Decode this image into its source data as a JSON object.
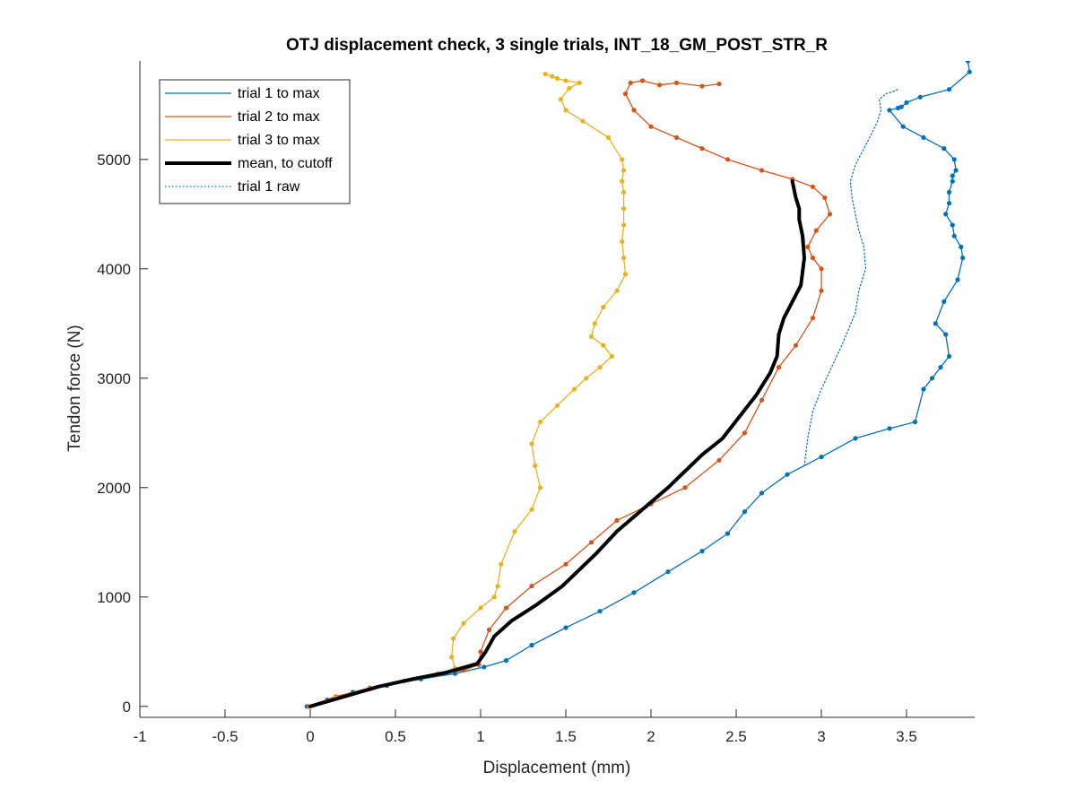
{
  "chart_data": {
    "type": "line",
    "title": "OTJ displacement check, 3 single trials, INT_18_GM_POST_STR_R",
    "xlabel": "Displacement (mm)",
    "ylabel": "Tendon force (N)",
    "xlim": [
      -1,
      3.9
    ],
    "ylim": [
      -100,
      5900
    ],
    "xticks": [
      -1,
      -0.5,
      0,
      0.5,
      1,
      1.5,
      2,
      2.5,
      3,
      3.5
    ],
    "xtick_labels": [
      "-1",
      "-0.5",
      "0",
      "0.5",
      "1",
      "1.5",
      "2",
      "2.5",
      "3",
      "3.5"
    ],
    "yticks": [
      0,
      1000,
      2000,
      3000,
      4000,
      5000
    ],
    "ytick_labels": [
      "0",
      "1000",
      "2000",
      "3000",
      "4000",
      "5000"
    ],
    "grid": false,
    "legend_position": "top-left",
    "legend": [
      {
        "label": "trial 1 to max",
        "color": "#0072BD",
        "style": "solid"
      },
      {
        "label": "trial 2 to max",
        "color": "#D95319",
        "style": "solid"
      },
      {
        "label": "trial 3 to max",
        "color": "#EDB120",
        "style": "solid"
      },
      {
        "label": "mean, to cutoff",
        "color": "#000000",
        "style": "thick"
      },
      {
        "label": "trial 1 raw",
        "color": "#0072BD",
        "style": "dotted"
      }
    ],
    "series": [
      {
        "name": "trial 1 to max",
        "color": "#0072BD",
        "style": "solid",
        "x": [
          -0.02,
          0.1,
          0.25,
          0.45,
          0.65,
          0.85,
          1.02,
          1.15,
          1.3,
          1.5,
          1.7,
          1.9,
          2.1,
          2.3,
          2.45,
          2.55,
          2.65,
          2.8,
          3.0,
          3.2,
          3.4,
          3.55,
          3.6,
          3.65,
          3.7,
          3.75,
          3.73,
          3.67,
          3.72,
          3.8,
          3.83,
          3.82,
          3.78,
          3.77,
          3.73,
          3.75,
          3.75,
          3.77,
          3.77,
          3.79,
          3.78,
          3.72,
          3.6,
          3.48,
          3.4,
          3.45,
          3.47,
          3.5,
          3.58,
          3.75,
          3.87,
          3.86,
          3.82,
          3.75,
          3.6,
          3.43,
          3.41,
          3.37
        ],
        "y": [
          0,
          60,
          130,
          190,
          250,
          300,
          360,
          420,
          560,
          720,
          870,
          1040,
          1230,
          1420,
          1580,
          1780,
          1950,
          2120,
          2280,
          2450,
          2540,
          2600,
          2900,
          3000,
          3100,
          3200,
          3400,
          3500,
          3700,
          3900,
          4100,
          4200,
          4300,
          4400,
          4500,
          4600,
          4700,
          4800,
          4850,
          4900,
          5000,
          5100,
          5200,
          5300,
          5450,
          5470,
          5480,
          5520,
          5570,
          5640,
          5800,
          5900,
          5970,
          6020,
          6020,
          5990,
          6010,
          6030
        ]
      },
      {
        "name": "trial 2 to max",
        "color": "#D95319",
        "style": "solid",
        "x": [
          -0.01,
          0.15,
          0.35,
          0.55,
          0.75,
          0.9,
          0.99,
          1.0,
          1.05,
          1.15,
          1.3,
          1.5,
          1.65,
          1.8,
          2.0,
          2.2,
          2.4,
          2.55,
          2.65,
          2.75,
          2.85,
          2.95,
          3.0,
          3.0,
          2.95,
          2.92,
          2.97,
          3.05,
          3.02,
          2.95,
          2.83,
          2.65,
          2.45,
          2.3,
          2.15,
          2.0,
          1.9,
          1.85,
          1.88,
          1.95,
          2.05,
          2.15,
          2.3,
          2.4
        ],
        "y": [
          0,
          90,
          170,
          230,
          290,
          330,
          380,
          500,
          700,
          900,
          1100,
          1300,
          1500,
          1700,
          1850,
          2000,
          2250,
          2500,
          2800,
          3100,
          3300,
          3550,
          3800,
          4000,
          4100,
          4200,
          4350,
          4500,
          4650,
          4750,
          4820,
          4900,
          5000,
          5100,
          5200,
          5300,
          5450,
          5600,
          5700,
          5720,
          5680,
          5700,
          5670,
          5690
        ]
      },
      {
        "name": "trial 3 to max",
        "color": "#EDB120",
        "style": "solid",
        "x": [
          0.0,
          0.15,
          0.35,
          0.55,
          0.75,
          0.85,
          0.83,
          0.84,
          0.9,
          1.0,
          1.08,
          1.1,
          1.12,
          1.2,
          1.3,
          1.35,
          1.32,
          1.3,
          1.35,
          1.45,
          1.55,
          1.62,
          1.7,
          1.77,
          1.72,
          1.65,
          1.67,
          1.72,
          1.8,
          1.85,
          1.84,
          1.83,
          1.84,
          1.84,
          1.84,
          1.83,
          1.84,
          1.83,
          1.75,
          1.6,
          1.5,
          1.47,
          1.52,
          1.58,
          1.5,
          1.45,
          1.42,
          1.38
        ],
        "y": [
          0,
          80,
          160,
          230,
          300,
          350,
          450,
          620,
          760,
          900,
          1000,
          1100,
          1300,
          1600,
          1800,
          2000,
          2200,
          2400,
          2600,
          2750,
          2900,
          3000,
          3100,
          3200,
          3300,
          3380,
          3500,
          3650,
          3800,
          3950,
          4100,
          4250,
          4400,
          4550,
          4700,
          4800,
          4900,
          5000,
          5200,
          5350,
          5450,
          5550,
          5650,
          5700,
          5720,
          5740,
          5760,
          5780
        ]
      },
      {
        "name": "mean, to cutoff",
        "color": "#000000",
        "style": "thick",
        "x": [
          0.0,
          0.2,
          0.4,
          0.6,
          0.8,
          0.98,
          1.03,
          1.08,
          1.18,
          1.32,
          1.48,
          1.58,
          1.68,
          1.8,
          1.95,
          2.1,
          2.2,
          2.3,
          2.42,
          2.52,
          2.62,
          2.7,
          2.74,
          2.75,
          2.78,
          2.83,
          2.88,
          2.9,
          2.89,
          2.87,
          2.87,
          2.85,
          2.83
        ],
        "y": [
          0,
          90,
          180,
          250,
          310,
          390,
          500,
          640,
          780,
          920,
          1100,
          1250,
          1400,
          1600,
          1800,
          2000,
          2150,
          2300,
          2450,
          2650,
          2850,
          3050,
          3200,
          3400,
          3550,
          3700,
          3850,
          4100,
          4300,
          4450,
          4550,
          4650,
          4800
        ]
      },
      {
        "name": "trial 1 raw",
        "color": "#0072BD",
        "style": "dotted",
        "x": [
          2.9,
          2.92,
          2.95,
          3.0,
          3.06,
          3.12,
          3.16,
          3.2,
          3.22,
          3.26,
          3.25,
          3.22,
          3.2,
          3.18,
          3.17,
          3.2,
          3.25,
          3.3,
          3.33,
          3.35,
          3.34,
          3.38,
          3.42,
          3.45
        ],
        "y": [
          2200,
          2450,
          2700,
          2900,
          3100,
          3300,
          3450,
          3600,
          3800,
          4000,
          4200,
          4350,
          4500,
          4650,
          4800,
          4950,
          5100,
          5250,
          5350,
          5450,
          5550,
          5600,
          5620,
          5640
        ]
      }
    ]
  }
}
